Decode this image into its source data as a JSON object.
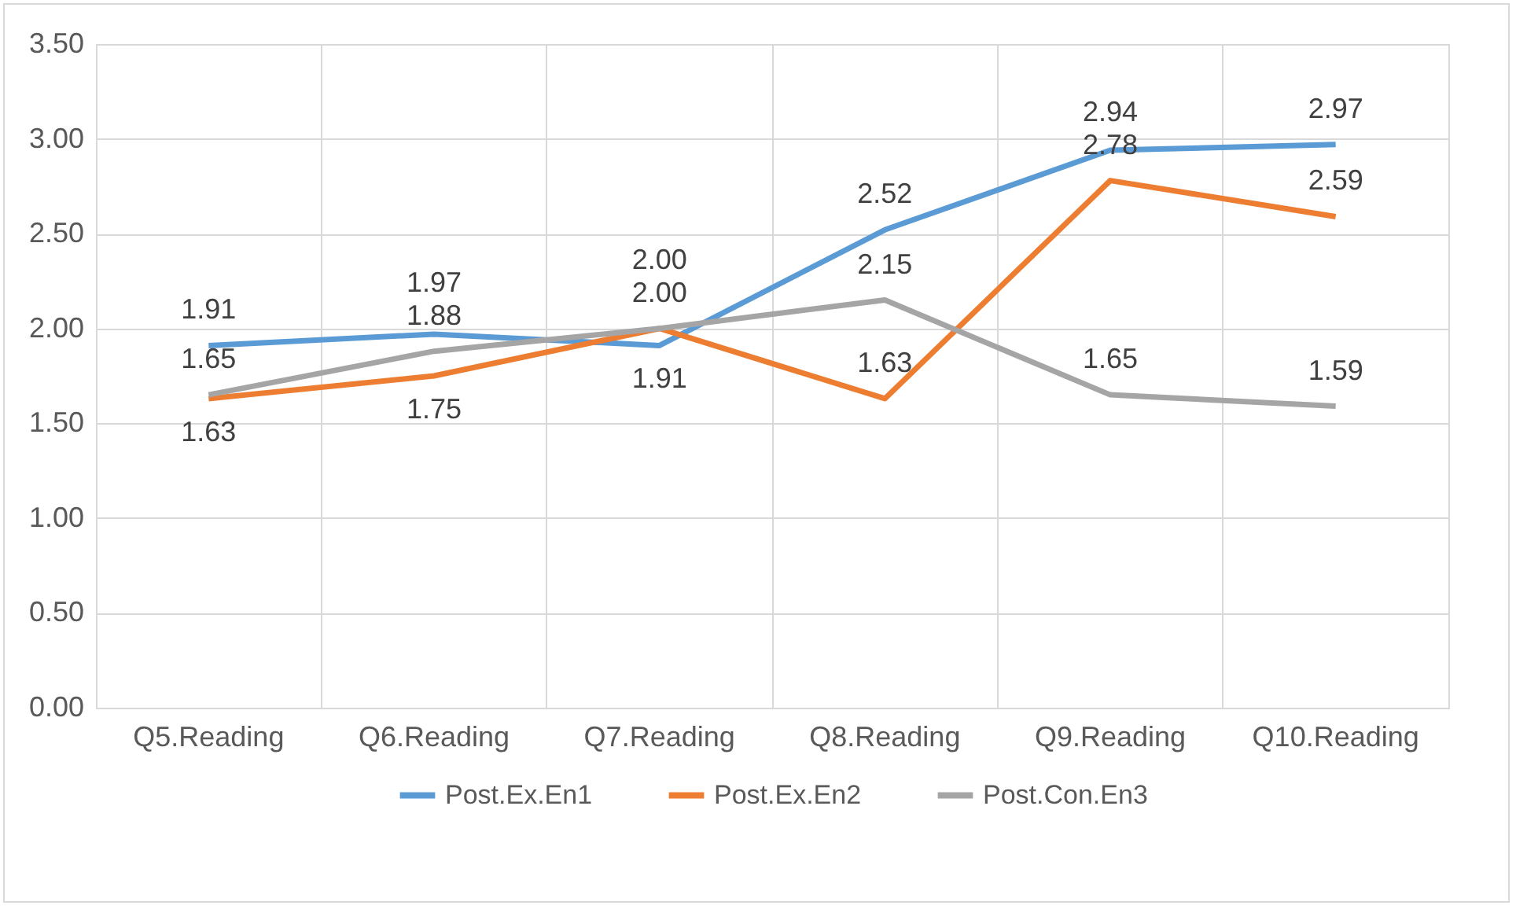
{
  "chart_data": {
    "type": "line",
    "categories": [
      "Q5.Reading",
      "Q6.Reading",
      "Q7.Reading",
      "Q8.Reading",
      "Q9.Reading",
      "Q10.Reading"
    ],
    "series": [
      {
        "name": "Post.Ex.En1",
        "color": "#5b9bd5",
        "values": [
          1.91,
          1.97,
          1.91,
          2.52,
          2.94,
          2.97
        ],
        "value_labels": [
          "1.91",
          "1.97",
          "1.91",
          "2.52",
          "2.94",
          "2.97"
        ]
      },
      {
        "name": "Post.Ex.En2",
        "color": "#ed7d31",
        "values": [
          1.63,
          1.75,
          2.0,
          1.63,
          2.78,
          2.59
        ],
        "value_labels": [
          "1.63",
          "1.75",
          "2.00",
          "1.63",
          "2.78",
          "2.59"
        ]
      },
      {
        "name": "Post.Con.En3",
        "color": "#a5a5a5",
        "values": [
          1.65,
          1.88,
          2.0,
          2.15,
          1.65,
          1.59
        ],
        "value_labels": [
          "1.65",
          "1.88",
          "2.00",
          "2.15",
          "1.65",
          "1.59"
        ]
      }
    ],
    "ylim": [
      0,
      3.5
    ],
    "yticks": [
      {
        "value": 0,
        "label": "0.00"
      },
      {
        "value": 0.5,
        "label": "0.50"
      },
      {
        "value": 1,
        "label": "1.00"
      },
      {
        "value": 1.5,
        "label": "1.50"
      },
      {
        "value": 2,
        "label": "2.00"
      },
      {
        "value": 2.5,
        "label": "2.50"
      },
      {
        "value": 3,
        "label": "3.00"
      },
      {
        "value": 3.5,
        "label": "3.50"
      }
    ],
    "grid": true,
    "legend": "bottom",
    "marker": "none"
  }
}
